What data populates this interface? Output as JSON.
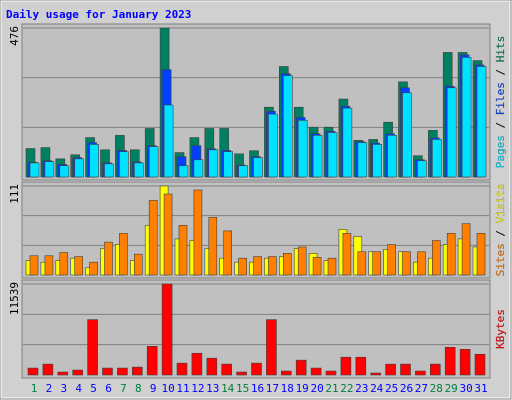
{
  "chart_data": [
    {
      "type": "bar",
      "title": "Daily usage for January 2023",
      "categories": [
        "1",
        "2",
        "3",
        "4",
        "5",
        "6",
        "7",
        "8",
        "9",
        "10",
        "11",
        "12",
        "13",
        "14",
        "15",
        "16",
        "17",
        "18",
        "19",
        "20",
        "21",
        "22",
        "23",
        "24",
        "25",
        "26",
        "27",
        "28",
        "29",
        "30",
        "31"
      ],
      "category_colors": [
        "#008040",
        "#0000ff",
        "#0000ff",
        "#0000ff",
        "#0000ff",
        "#0000ff",
        "#008040",
        "#008040",
        "#0000ff",
        "#0000ff",
        "#0000ff",
        "#0000ff",
        "#0000ff",
        "#008040",
        "#008040",
        "#0000ff",
        "#0000ff",
        "#0000ff",
        "#0000ff",
        "#0000ff",
        "#008040",
        "#008040",
        "#0000ff",
        "#0000ff",
        "#0000ff",
        "#0000ff",
        "#0000ff",
        "#008040",
        "#008040",
        "#0000ff",
        "#0000ff"
      ],
      "ylim": [
        0,
        476
      ],
      "yticks": [
        476
      ],
      "series": [
        {
          "name": "Hits",
          "color": "#008060",
          "values": [
            91,
            94,
            58,
            71,
            126,
            87,
            133,
            87,
            155,
            476,
            78,
            126,
            155,
            155,
            74,
            84,
            223,
            353,
            223,
            159,
            159,
            249,
            117,
            120,
            175,
            304,
            68,
            149,
            398,
            398,
            372
          ]
        },
        {
          "name": "Files",
          "color": "#0040ff",
          "values": [
            47,
            52,
            40,
            62,
            110,
            45,
            85,
            48,
            100,
            343,
            65,
            100,
            90,
            85,
            38,
            65,
            210,
            330,
            190,
            138,
            146,
            226,
            113,
            108,
            138,
            285,
            55,
            125,
            290,
            390,
            358
          ]
        },
        {
          "name": "Pages",
          "color": "#00e0ff",
          "values": [
            45,
            49,
            36,
            58,
            104,
            42,
            81,
            45,
            97,
            230,
            36,
            55,
            87,
            81,
            36,
            62,
            201,
            324,
            181,
            133,
            142,
            220,
            110,
            104,
            133,
            269,
            52,
            120,
            285,
            382,
            353
          ]
        }
      ]
    },
    {
      "type": "bar",
      "ylim": [
        0,
        111
      ],
      "yticks": [
        111
      ],
      "series": [
        {
          "name": "Visits",
          "color": "#ffff00",
          "values": [
            18,
            16,
            18,
            21,
            9,
            33,
            38,
            18,
            62,
            111,
            45,
            43,
            33,
            21,
            16,
            16,
            21,
            23,
            33,
            27,
            18,
            57,
            48,
            29,
            32,
            29,
            16,
            21,
            38,
            45,
            35
          ]
        },
        {
          "name": "Sites",
          "color": "#ff8000",
          "values": [
            24,
            24,
            28,
            23,
            16,
            41,
            52,
            26,
            93,
            101,
            62,
            106,
            72,
            55,
            21,
            23,
            23,
            27,
            35,
            22,
            21,
            52,
            29,
            29,
            38,
            29,
            29,
            43,
            52,
            64,
            52
          ]
        }
      ]
    },
    {
      "type": "bar",
      "ylim": [
        0,
        11539
      ],
      "yticks": [
        11539
      ],
      "series": [
        {
          "name": "KBytes",
          "color": "#ff0000",
          "values": [
            878,
            1380,
            376,
            627,
            7024,
            878,
            878,
            1003,
            3637,
            11539,
            1505,
            2759,
            2132,
            1380,
            376,
            1505,
            7024,
            502,
            1881,
            878,
            502,
            2258,
            2258,
            251,
            1380,
            1380,
            502,
            1380,
            3512,
            3261,
            2634
          ]
        }
      ]
    }
  ]
}
